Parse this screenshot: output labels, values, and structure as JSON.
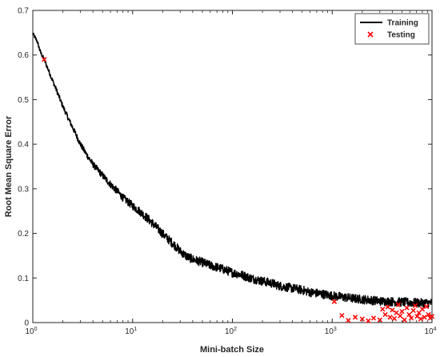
{
  "chart_data": {
    "type": "line",
    "title": "",
    "xlabel": "Mini-batch Size",
    "ylabel": "Root Mean Square Error",
    "xscale": "log",
    "xlim": [
      1,
      10000
    ],
    "ylim": [
      0,
      0.7
    ],
    "xticks": [
      1,
      10,
      100,
      1000,
      10000
    ],
    "xtick_labels": [
      {
        "base": "10",
        "exp": "0"
      },
      {
        "base": "10",
        "exp": "1"
      },
      {
        "base": "10",
        "exp": "2"
      },
      {
        "base": "10",
        "exp": "3"
      },
      {
        "base": "10",
        "exp": "4"
      }
    ],
    "yticks": [
      0,
      0.1,
      0.2,
      0.3,
      0.4,
      0.5,
      0.6,
      0.7
    ],
    "ytick_labels": [
      "0",
      "0.1",
      "0.2",
      "0.3",
      "0.4",
      "0.5",
      "0.6",
      "0.7"
    ],
    "grid": false,
    "legend_position": "top-right",
    "series": [
      {
        "name": "Training",
        "style": "line",
        "color": "#000000",
        "x": [
          1,
          1.1,
          1.2,
          1.3,
          1.5,
          1.7,
          2,
          2.3,
          2.6,
          3,
          3.5,
          4,
          5,
          6,
          7,
          8,
          10,
          12,
          15,
          18,
          22,
          26,
          30,
          35,
          40,
          50,
          60,
          70,
          80,
          100,
          120,
          150,
          200,
          250,
          300,
          400,
          500,
          600,
          800,
          1000,
          1200,
          1500,
          2000,
          2500,
          3000,
          4000,
          5000,
          6000,
          8000,
          10000
        ],
        "y": [
          0.648,
          0.632,
          0.605,
          0.59,
          0.555,
          0.525,
          0.485,
          0.455,
          0.43,
          0.4,
          0.375,
          0.355,
          0.33,
          0.31,
          0.295,
          0.28,
          0.262,
          0.248,
          0.228,
          0.21,
          0.19,
          0.175,
          0.16,
          0.148,
          0.142,
          0.135,
          0.128,
          0.124,
          0.12,
          0.112,
          0.108,
          0.1,
          0.093,
          0.088,
          0.082,
          0.077,
          0.073,
          0.068,
          0.064,
          0.06,
          0.058,
          0.055,
          0.052,
          0.05,
          0.048,
          0.047,
          0.046,
          0.045,
          0.044,
          0.044
        ]
      },
      {
        "name": "Testing",
        "style": "marker-x",
        "color": "#ff0000",
        "x": [
          1.3,
          1050,
          1250,
          1450,
          1700,
          2000,
          2300,
          2600,
          3000,
          3200,
          3400,
          3600,
          3800,
          4000,
          4200,
          4400,
          4600,
          4800,
          5000,
          5300,
          5600,
          5900,
          6200,
          6500,
          6800,
          7100,
          7400,
          7700,
          8000,
          8400,
          8800,
          9200,
          9600,
          10000
        ],
        "y": [
          0.59,
          0.047,
          0.016,
          0.005,
          0.012,
          0.008,
          0.004,
          0.01,
          0.006,
          0.03,
          0.018,
          0.035,
          0.012,
          0.028,
          0.009,
          0.022,
          0.04,
          0.015,
          0.025,
          0.006,
          0.033,
          0.018,
          0.01,
          0.027,
          0.038,
          0.014,
          0.022,
          0.008,
          0.03,
          0.012,
          0.036,
          0.018,
          0.01,
          0.014
        ]
      }
    ]
  }
}
